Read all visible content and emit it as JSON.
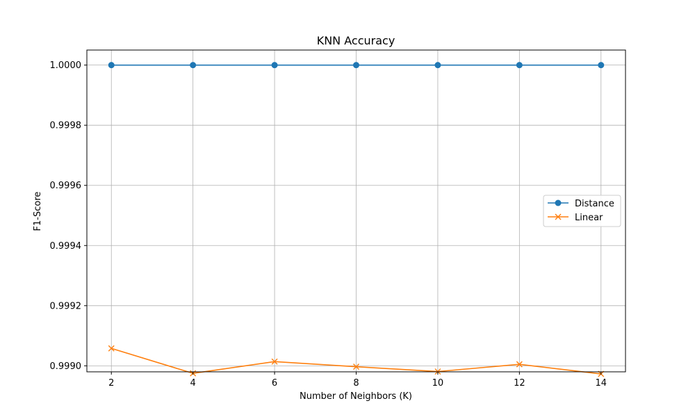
{
  "chart_data": {
    "type": "line",
    "title": "KNN Accuracy",
    "xlabel": "Number of Neighbors (K)",
    "ylabel": "F1-Score",
    "x": [
      2,
      4,
      6,
      8,
      10,
      12,
      14
    ],
    "xlim": [
      1.4,
      14.6
    ],
    "ylim": [
      0.99898,
      1.00005
    ],
    "xticks": [
      2,
      4,
      6,
      8,
      10,
      12,
      14
    ],
    "yticks": [
      0.999,
      0.9992,
      0.9994,
      0.9996,
      0.9998,
      1.0
    ],
    "ytick_labels": [
      "0.9990",
      "0.9992",
      "0.9994",
      "0.9996",
      "0.9998",
      "1.0000"
    ],
    "grid": true,
    "legend_position": "center-right",
    "series": [
      {
        "name": "Distance",
        "marker": "circle",
        "color": "#1f77b4",
        "values": [
          1.0,
          1.0,
          1.0,
          1.0,
          1.0,
          1.0,
          1.0
        ]
      },
      {
        "name": "Linear",
        "marker": "x",
        "color": "#ff7f0e",
        "values": [
          0.999058,
          0.998975,
          0.999014,
          0.998997,
          0.998981,
          0.999005,
          0.998973
        ]
      }
    ]
  }
}
